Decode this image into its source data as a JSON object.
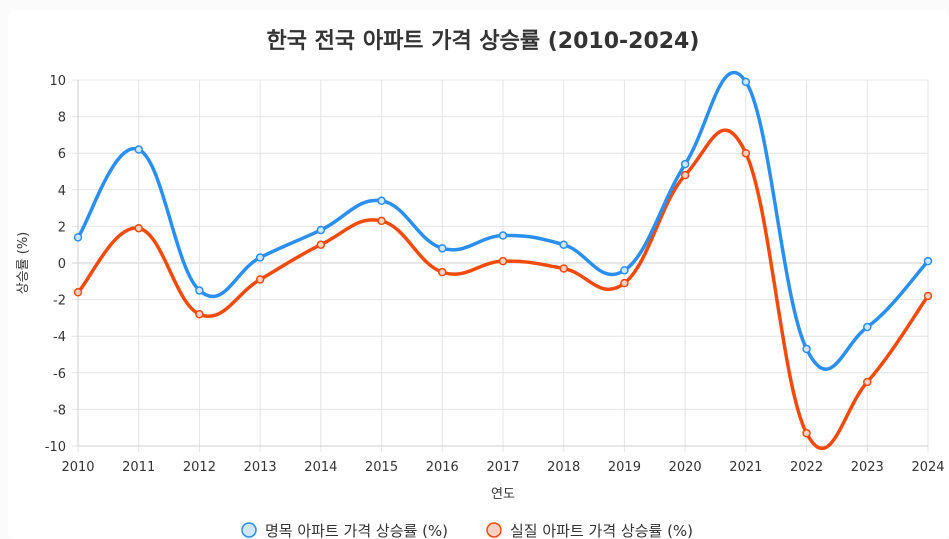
{
  "chart_data": {
    "type": "line",
    "title": "한국 전국 아파트 가격 상승률 (2010-2024)",
    "xlabel": "연도",
    "ylabel": "상승률 (%)",
    "ylim": [
      -10,
      10
    ],
    "yticks": [
      10,
      8,
      6,
      4,
      2,
      0,
      -2,
      -4,
      -6,
      -8,
      -10
    ],
    "grid": true,
    "legend_position": "bottom",
    "categories": [
      "2010",
      "2011",
      "2012",
      "2013",
      "2014",
      "2015",
      "2016",
      "2017",
      "2018",
      "2019",
      "2020",
      "2021",
      "2022",
      "2023",
      "2024"
    ],
    "series": [
      {
        "name": "명목 아파트 가격 상승률 (%)",
        "color": "#2a8ff0",
        "fill": "#cfe6fb",
        "values": [
          1.4,
          6.2,
          -1.5,
          0.3,
          1.8,
          3.4,
          0.8,
          1.5,
          1.0,
          -0.4,
          5.4,
          9.9,
          -4.7,
          -3.5,
          0.1
        ]
      },
      {
        "name": "실질 아파트 가격 상승률 (%)",
        "color": "#f24a0c",
        "fill": "#fbd2c2",
        "values": [
          -1.6,
          1.9,
          -2.8,
          -0.9,
          1.0,
          2.3,
          -0.5,
          0.1,
          -0.3,
          -1.1,
          4.8,
          6.0,
          -9.3,
          -6.5,
          -1.8
        ]
      }
    ]
  }
}
